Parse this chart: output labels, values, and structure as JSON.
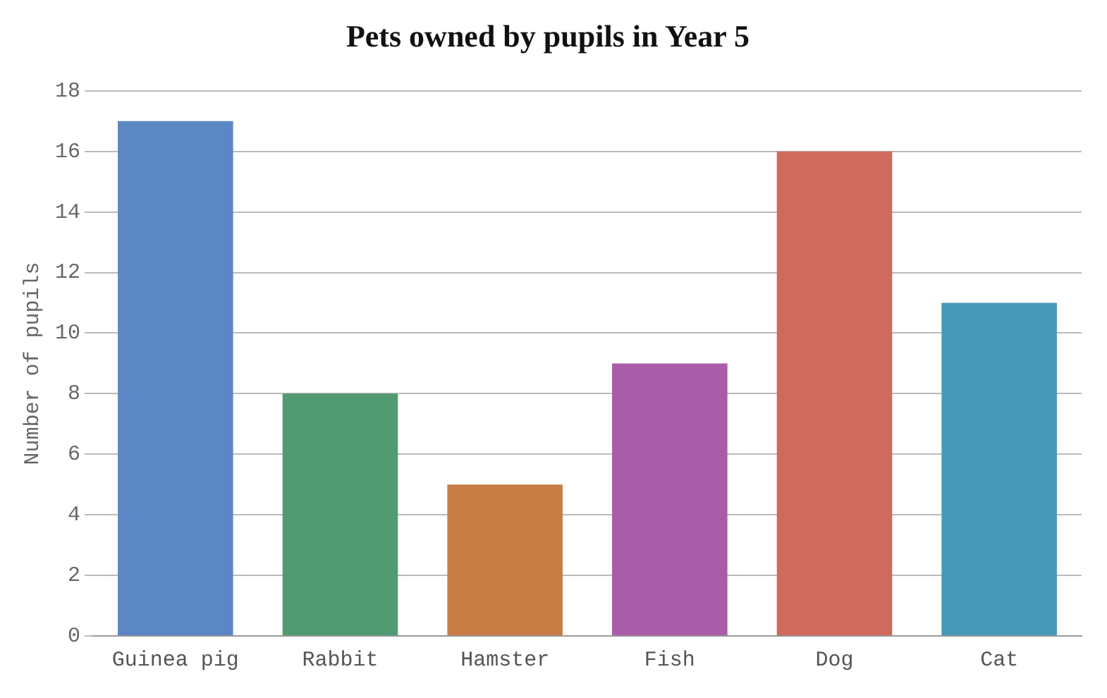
{
  "chart_data": {
    "type": "bar",
    "title": "Pets owned by pupils in Year 5",
    "ylabel": "Number of pupils",
    "categories": [
      "Guinea pig",
      "Rabbit",
      "Hamster",
      "Fish",
      "Dog",
      "Cat"
    ],
    "values": [
      17,
      8,
      5,
      9,
      16,
      11
    ],
    "colors": [
      "#5b88c4",
      "#529a72",
      "#c87d45",
      "#a95ca8",
      "#d06a5e",
      "#4699b7"
    ],
    "ylim": [
      0,
      18
    ],
    "yticks": [
      0,
      2,
      4,
      6,
      8,
      10,
      12,
      14,
      16,
      18
    ],
    "grid": "y",
    "legend": false
  }
}
